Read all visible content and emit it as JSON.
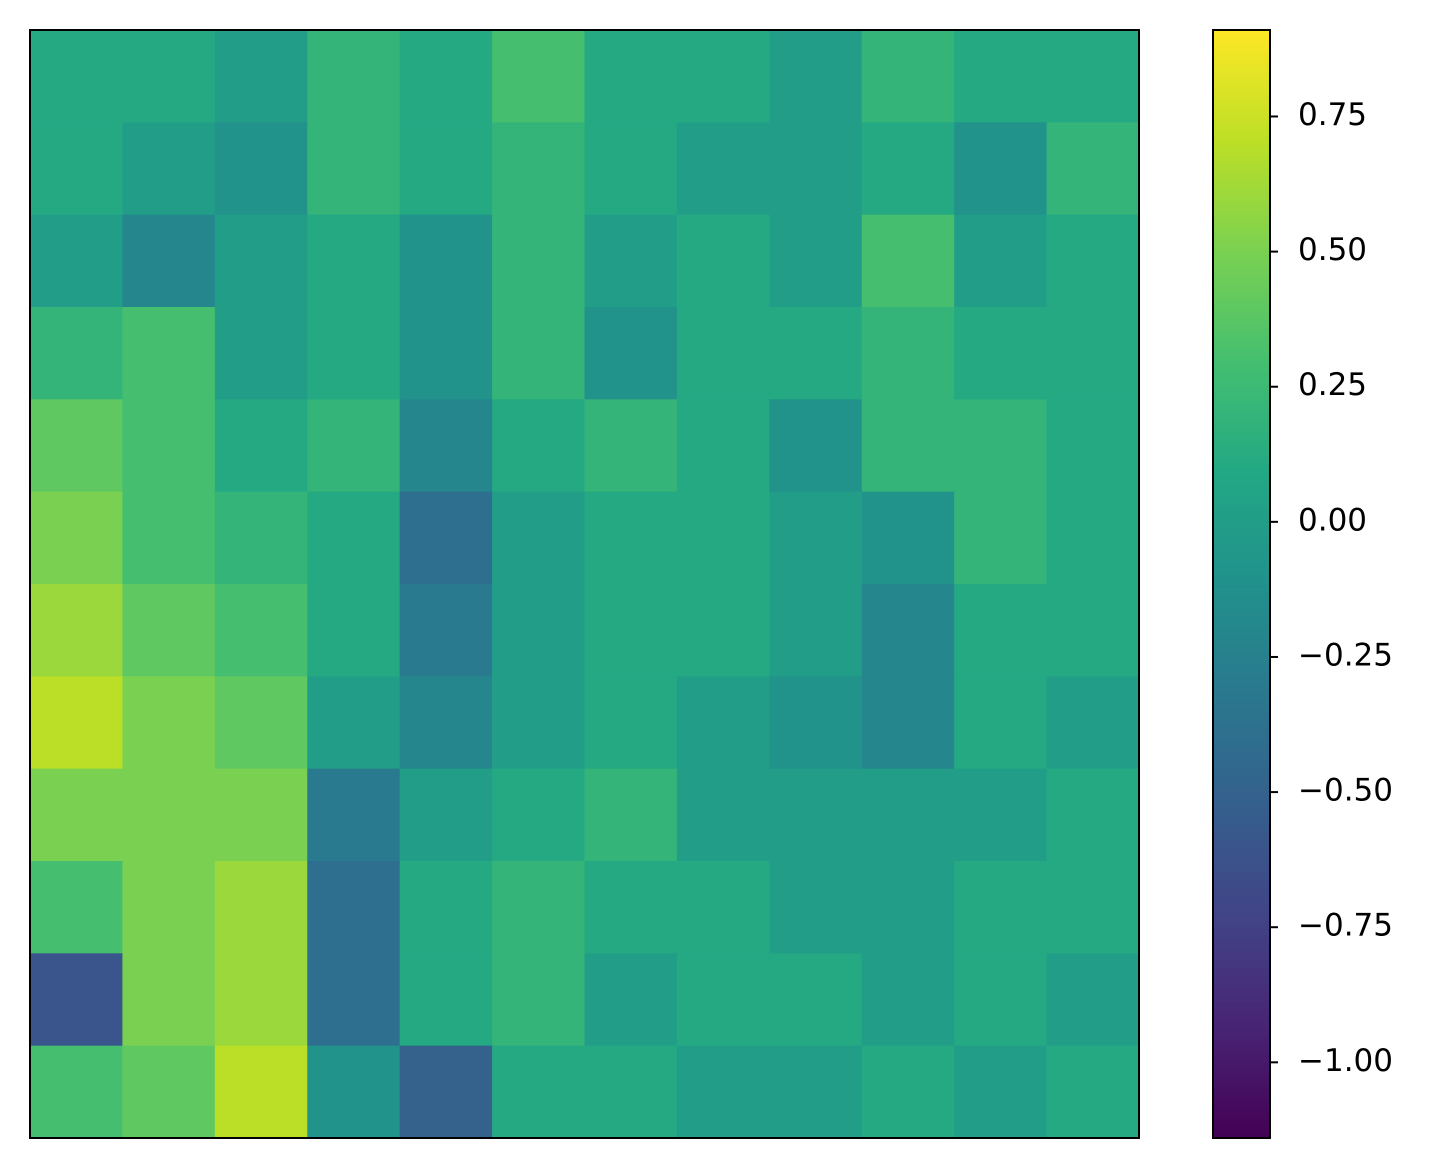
{
  "chart_data": {
    "type": "heatmap",
    "colormap": "viridis",
    "z": [
      [
        0.1,
        0.1,
        0.0,
        0.2,
        0.1,
        0.3,
        0.1,
        0.1,
        0.0,
        0.2,
        0.1,
        0.1
      ],
      [
        0.1,
        0.0,
        -0.1,
        0.2,
        0.1,
        0.2,
        0.1,
        0.0,
        0.0,
        0.1,
        -0.1,
        0.2
      ],
      [
        0.0,
        -0.2,
        0.0,
        0.1,
        -0.1,
        0.2,
        0.0,
        0.1,
        0.0,
        0.3,
        0.0,
        0.1
      ],
      [
        0.2,
        0.3,
        0.0,
        0.1,
        -0.1,
        0.2,
        -0.1,
        0.1,
        0.1,
        0.2,
        0.1,
        0.1
      ],
      [
        0.4,
        0.3,
        0.1,
        0.2,
        -0.2,
        0.1,
        0.2,
        0.1,
        -0.1,
        0.2,
        0.2,
        0.1
      ],
      [
        0.5,
        0.3,
        0.2,
        0.1,
        -0.4,
        0.0,
        0.1,
        0.1,
        0.0,
        -0.1,
        0.2,
        0.1
      ],
      [
        0.6,
        0.4,
        0.3,
        0.1,
        -0.3,
        0.0,
        0.1,
        0.1,
        0.0,
        -0.2,
        0.1,
        0.1
      ],
      [
        0.7,
        0.5,
        0.4,
        0.0,
        -0.2,
        0.0,
        0.1,
        0.0,
        -0.1,
        -0.2,
        0.1,
        0.0
      ],
      [
        0.5,
        0.5,
        0.5,
        -0.3,
        0.0,
        0.1,
        0.2,
        0.0,
        0.0,
        0.0,
        0.0,
        0.1
      ],
      [
        0.3,
        0.5,
        0.6,
        -0.4,
        0.1,
        0.2,
        0.1,
        0.1,
        0.0,
        0.0,
        0.1,
        0.1
      ],
      [
        -0.6,
        0.5,
        0.6,
        -0.4,
        0.1,
        0.2,
        0.0,
        0.1,
        0.1,
        0.0,
        0.1,
        0.0
      ],
      [
        0.3,
        0.4,
        0.7,
        -0.1,
        -0.5,
        0.1,
        0.1,
        0.0,
        0.0,
        0.1,
        0.0,
        0.1
      ]
    ],
    "clim": [
      -1.14,
      0.91
    ],
    "cticks": [
      0.75,
      {
        "value": 0.5,
        "label": "0.50"
      },
      0.25,
      {
        "value": 0,
        "label": "0.00"
      },
      {
        "value": -0.25,
        "label": "−0.25"
      },
      {
        "value": -0.5,
        "label": "−0.50"
      },
      {
        "value": -0.75,
        "label": "−0.75"
      },
      {
        "value": -1,
        "label": "−1.00"
      }
    ]
  }
}
